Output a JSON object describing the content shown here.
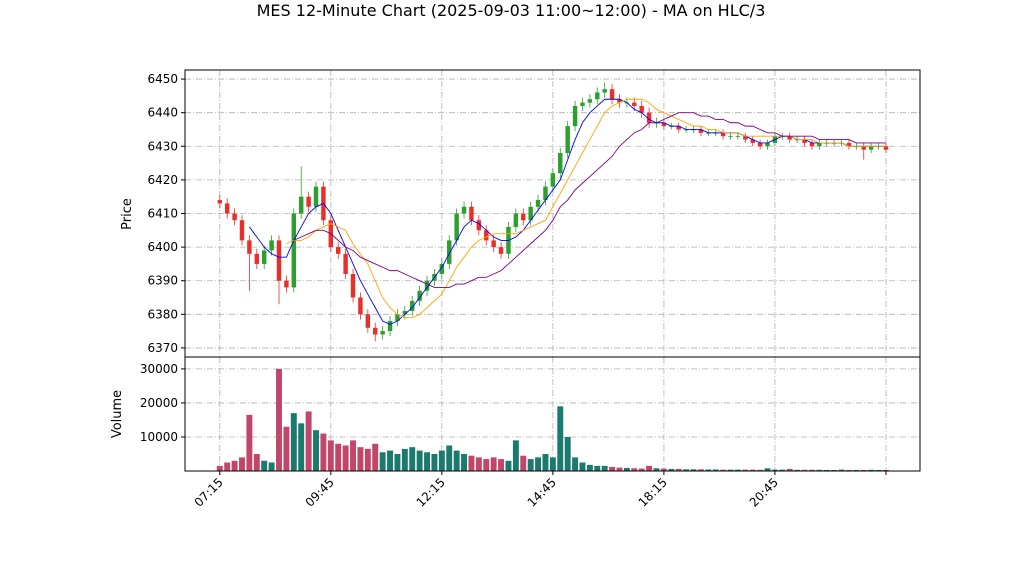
{
  "chart_data": [
    {
      "type": "candlestick",
      "title": "MES 12-Minute Chart (2025-09-03 11:00~12:00) - MA on HLC/3",
      "ylabel": "Price",
      "up_color": "#2ca02c",
      "down_color": "#e8302a",
      "open": [
        6414,
        6413,
        6410,
        6408,
        6402,
        6398,
        6395,
        6399,
        6402,
        6390,
        6388,
        6410,
        6415,
        6412,
        6418,
        6408,
        6400,
        6398,
        6392,
        6385,
        6380,
        6376,
        6374,
        6375,
        6378,
        6380,
        6381,
        6384,
        6387,
        6390,
        6392,
        6395,
        6402,
        6410,
        6412,
        6408,
        6405,
        6402,
        6400,
        6398,
        6406,
        6410,
        6408,
        6412,
        6414,
        6418,
        6422,
        6428,
        6436,
        6442,
        6443,
        6444,
        6446,
        6447,
        6444,
        6443,
        6443,
        6442,
        6440,
        6437,
        6437,
        6436,
        6436,
        6435,
        6435,
        6435,
        6434,
        6434,
        6434,
        6433,
        6433,
        6433,
        6432,
        6431,
        6430,
        6431,
        6433,
        6433,
        6432,
        6432,
        6431,
        6430,
        6431,
        6431,
        6431,
        6431,
        6430,
        6430,
        6429,
        6430,
        6430
      ],
      "high": [
        6415.5,
        6414.5,
        6411.5,
        6409.5,
        6403.5,
        6399.5,
        6400.5,
        6403.5,
        6403.5,
        6391.5,
        6411.5,
        6424,
        6416.5,
        6419.5,
        6419.5,
        6409.5,
        6401.5,
        6399.5,
        6393.5,
        6386.5,
        6381.5,
        6377.5,
        6376.5,
        6379.5,
        6381.5,
        6382.5,
        6385.5,
        6388.5,
        6391.5,
        6393.5,
        6396.5,
        6403.5,
        6411.5,
        6413.5,
        6413.5,
        6409.5,
        6406.5,
        6403.5,
        6401.5,
        6407.5,
        6411.5,
        6411.5,
        6413.5,
        6415.5,
        6419.5,
        6423.5,
        6429.5,
        6437.5,
        6443.5,
        6444.5,
        6445.5,
        6447.5,
        6449,
        6448.5,
        6445.5,
        6444.5,
        6444.5,
        6443.5,
        6441.5,
        6438.5,
        6438,
        6437,
        6437,
        6436,
        6436,
        6436,
        6435,
        6435,
        6435,
        6434,
        6434,
        6434,
        6433,
        6432,
        6432,
        6434,
        6434,
        6434,
        6433,
        6433,
        6432,
        6432,
        6432,
        6432,
        6432,
        6432,
        6431,
        6431,
        6431,
        6431,
        6431
      ],
      "low": [
        6411.5,
        6408.5,
        6406.5,
        6400.5,
        6387,
        6393.5,
        6393.5,
        6397.5,
        6383,
        6386.5,
        6386.5,
        6408.5,
        6410.5,
        6410.5,
        6406.5,
        6398.5,
        6396.5,
        6390.5,
        6383.5,
        6378.5,
        6374.5,
        6372,
        6372.5,
        6373.5,
        6376.5,
        6378.5,
        6379.5,
        6382.5,
        6385.5,
        6388.5,
        6390.5,
        6393.5,
        6400.5,
        6408.5,
        6406.5,
        6403.5,
        6400.5,
        6398.5,
        6396.5,
        6396.5,
        6404.5,
        6406.5,
        6406.5,
        6410.5,
        6412.5,
        6416.5,
        6420.5,
        6426.5,
        6434.5,
        6440.5,
        6441.5,
        6442.5,
        6444.5,
        6442.5,
        6441.5,
        6441.5,
        6440.5,
        6438.5,
        6435.5,
        6435.5,
        6435,
        6435,
        6434,
        6434,
        6434,
        6433,
        6433,
        6433,
        6432,
        6432,
        6432,
        6431,
        6430,
        6429,
        6429,
        6430,
        6432,
        6431,
        6431,
        6430,
        6429,
        6429,
        6430,
        6430,
        6430,
        6429,
        6429,
        6426,
        6428,
        6429,
        6428
      ],
      "close": [
        6413,
        6410,
        6408,
        6402,
        6398,
        6395,
        6399,
        6402,
        6390,
        6388,
        6410,
        6415,
        6412,
        6418,
        6408,
        6400,
        6398,
        6392,
        6385,
        6380,
        6376,
        6374,
        6375,
        6378,
        6380,
        6381,
        6384,
        6387,
        6390,
        6392,
        6395,
        6402,
        6410,
        6412,
        6408,
        6405,
        6402,
        6400,
        6398,
        6406,
        6410,
        6408,
        6412,
        6414,
        6418,
        6422,
        6428,
        6436,
        6442,
        6443,
        6444,
        6446,
        6447,
        6444,
        6443,
        6443,
        6442,
        6440,
        6437,
        6437,
        6436,
        6436,
        6435,
        6435,
        6435,
        6434,
        6434,
        6434,
        6433,
        6433,
        6433,
        6432,
        6431,
        6430,
        6431,
        6433,
        6433,
        6432,
        6432,
        6431,
        6430,
        6431,
        6431,
        6431,
        6431,
        6430,
        6430,
        6429,
        6430,
        6430,
        6429
      ],
      "lines": [
        {
          "color": "#0000ff",
          "values": [
            null,
            null,
            null,
            null,
            6406,
            6403,
            6400,
            6398,
            6397,
            6397,
            6402,
            6406,
            6410,
            6412,
            6413,
            6410,
            6405,
            6400,
            6395,
            6390,
            6386,
            6382,
            6378,
            6377,
            6378,
            6380,
            6382,
            6385,
            6388,
            6391,
            6394,
            6398,
            6402,
            6406,
            6408,
            6407,
            6405,
            6403,
            6402,
            6402,
            6403,
            6405,
            6408,
            6411,
            6414,
            6417,
            6420,
            6426,
            6432,
            6437,
            6440,
            6442,
            6444,
            6444,
            6444,
            6443,
            6441,
            6440,
            6438,
            6437,
            6437,
            6436,
            6436,
            6435,
            6435,
            6435,
            6434,
            6434,
            6434,
            6434,
            6434,
            6433,
            6432,
            6431,
            6431,
            6432,
            6433,
            6433,
            6432,
            6432,
            6431,
            6431,
            6431,
            6431,
            6431,
            6430,
            6430,
            6430,
            6430,
            6430,
            6430
          ]
        },
        {
          "color": "#ffa500",
          "values": [
            null,
            null,
            null,
            null,
            null,
            null,
            null,
            null,
            null,
            6401,
            6402,
            6402,
            6403,
            6405,
            6406,
            6407,
            6406,
            6405,
            6401,
            6398,
            6395,
            6390,
            6385,
            6382,
            6380,
            6379,
            6379,
            6380,
            6382,
            6384,
            6386,
            6390,
            6394,
            6397,
            6400,
            6402,
            6403,
            6404,
            6404,
            6404,
            6404,
            6405,
            6406,
            6407,
            6408,
            6412,
            6416,
            6420,
            6424,
            6428,
            6432,
            6436,
            6440,
            6442,
            6443,
            6444,
            6444,
            6444,
            6443,
            6441,
            6440,
            6439,
            6438,
            6437,
            6436,
            6436,
            6435,
            6435,
            6434,
            6434,
            6434,
            6433,
            6433,
            6433,
            6433,
            6433,
            6433,
            6433,
            6432,
            6432,
            6432,
            6431,
            6431,
            6431,
            6431,
            6430,
            6430,
            6430,
            6430,
            6430,
            6430
          ]
        },
        {
          "color": "#800080",
          "values": [
            null,
            null,
            null,
            null,
            null,
            null,
            null,
            null,
            null,
            null,
            6402,
            6403,
            6404,
            6405,
            6405,
            6404,
            6402,
            6400,
            6399,
            6397,
            6396,
            6395,
            6394,
            6393,
            6393,
            6392,
            6391,
            6390,
            6389,
            6388,
            6388,
            6388,
            6389,
            6389,
            6390,
            6391,
            6391,
            6392,
            6393,
            6395,
            6397,
            6399,
            6401,
            6403,
            6405,
            6408,
            6412,
            6414,
            6417,
            6419,
            6421,
            6423,
            6425,
            6427,
            6430,
            6432,
            6434,
            6435,
            6437,
            6437,
            6438,
            6439,
            6440,
            6440,
            6440,
            6439,
            6439,
            6438,
            6438,
            6437,
            6437,
            6436,
            6436,
            6435,
            6434,
            6434,
            6433,
            6433,
            6433,
            6433,
            6433,
            6432,
            6432,
            6432,
            6432,
            6432,
            6431,
            6431,
            6431,
            6431,
            6431
          ]
        }
      ],
      "xlim": [
        -4.7,
        94.6
      ],
      "ylim": [
        6367.3,
        6452.7
      ],
      "yticks": [
        6370,
        6380,
        6390,
        6400,
        6410,
        6420,
        6430,
        6440,
        6450
      ],
      "grid": true
    },
    {
      "type": "bar",
      "ylabel": "Volume",
      "up_color": "#1a7a6e",
      "down_color": "#c2456a",
      "values": [
        1500,
        2500,
        3000,
        4000,
        16500,
        5000,
        3000,
        2500,
        30000,
        13000,
        17000,
        14000,
        17500,
        12000,
        11000,
        9000,
        8000,
        7500,
        9000,
        7000,
        6500,
        8000,
        5500,
        6000,
        5000,
        6500,
        7000,
        6000,
        5500,
        5000,
        6000,
        7500,
        6000,
        5000,
        4500,
        4000,
        3500,
        4000,
        3500,
        3000,
        9000,
        4500,
        3500,
        4000,
        5000,
        4000,
        19000,
        10000,
        4000,
        2500,
        1800,
        1500,
        1500,
        1200,
        1000,
        900,
        800,
        700,
        1500,
        800,
        700,
        600,
        600,
        500,
        500,
        500,
        450,
        450,
        400,
        400,
        400,
        400,
        400,
        350,
        800,
        400,
        400,
        600,
        350,
        350,
        350,
        350,
        300,
        300,
        400,
        300,
        300,
        300,
        350,
        300,
        300
      ],
      "xlim": [
        -4.7,
        94.6
      ],
      "ylim": [
        0,
        33500
      ],
      "yticks": [
        10000,
        20000,
        30000
      ],
      "xticks": [
        {
          "value": 0,
          "label": "07:15"
        },
        {
          "value": 15,
          "label": "09:45"
        },
        {
          "value": 30,
          "label": "12:15"
        },
        {
          "value": 45,
          "label": "14:45"
        },
        {
          "value": 60,
          "label": "18:15"
        },
        {
          "value": 75,
          "label": "20:45"
        },
        {
          "value": 90,
          "label": null
        }
      ],
      "grid": true
    }
  ]
}
